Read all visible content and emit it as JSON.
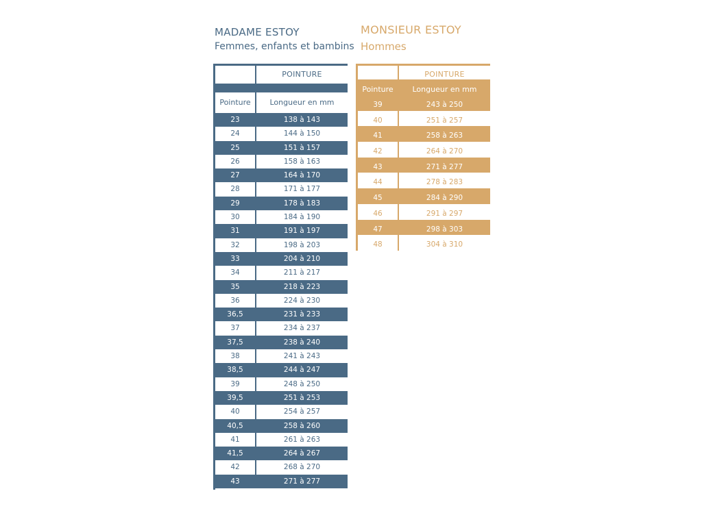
{
  "colors": {
    "madame": "#4a6a85",
    "monsieur": "#d7a86a"
  },
  "madame": {
    "title": "MADAME ESTOY",
    "subtitle": "Femmes, enfants et bambins",
    "head": "POINTURE",
    "col1": "Pointure",
    "col2": "Longueur en mm",
    "rows": [
      {
        "size": "23",
        "length": "138 à 143"
      },
      {
        "size": "24",
        "length": "144 à 150"
      },
      {
        "size": "25",
        "length": "151 à 157"
      },
      {
        "size": "26",
        "length": "158 à 163"
      },
      {
        "size": "27",
        "length": "164 à 170"
      },
      {
        "size": "28",
        "length": "171 à 177"
      },
      {
        "size": "29",
        "length": "178 à 183"
      },
      {
        "size": "30",
        "length": "184 à 190"
      },
      {
        "size": "31",
        "length": "191 à 197"
      },
      {
        "size": "32",
        "length": "198 à 203"
      },
      {
        "size": "33",
        "length": "204 à 210"
      },
      {
        "size": "34",
        "length": "211 à 217"
      },
      {
        "size": "35",
        "length": "218 à 223"
      },
      {
        "size": "36",
        "length": "224 à 230"
      },
      {
        "size": "36,5",
        "length": "231 à 233"
      },
      {
        "size": "37",
        "length": "234 à 237"
      },
      {
        "size": "37,5",
        "length": "238 à 240"
      },
      {
        "size": "38",
        "length": "241 à 243"
      },
      {
        "size": "38,5",
        "length": "244 à 247"
      },
      {
        "size": "39",
        "length": "248 à 250"
      },
      {
        "size": "39,5",
        "length": "251 à 253"
      },
      {
        "size": "40",
        "length": "254 à 257"
      },
      {
        "size": "40,5",
        "length": "258 à 260"
      },
      {
        "size": "41",
        "length": "261 à 263"
      },
      {
        "size": "41,5",
        "length": "264 à 267"
      },
      {
        "size": "42",
        "length": "268 à 270"
      },
      {
        "size": "43",
        "length": "271 à 277"
      }
    ]
  },
  "monsieur": {
    "title": "MONSIEUR ESTOY",
    "subtitle": "Hommes",
    "head": "POINTURE",
    "col1": "Pointure",
    "col2": "Longueur en mm",
    "rows": [
      {
        "size": "39",
        "length": "243 à 250"
      },
      {
        "size": "40",
        "length": "251 à 257"
      },
      {
        "size": "41",
        "length": "258 à 263"
      },
      {
        "size": "42",
        "length": "264 à 270"
      },
      {
        "size": "43",
        "length": "271 à 277"
      },
      {
        "size": "44",
        "length": "278 à 283"
      },
      {
        "size": "45",
        "length": "284 à 290"
      },
      {
        "size": "46",
        "length": "291 à 297"
      },
      {
        "size": "47",
        "length": "298 à 303"
      },
      {
        "size": "48",
        "length": "304 à 310"
      }
    ]
  }
}
